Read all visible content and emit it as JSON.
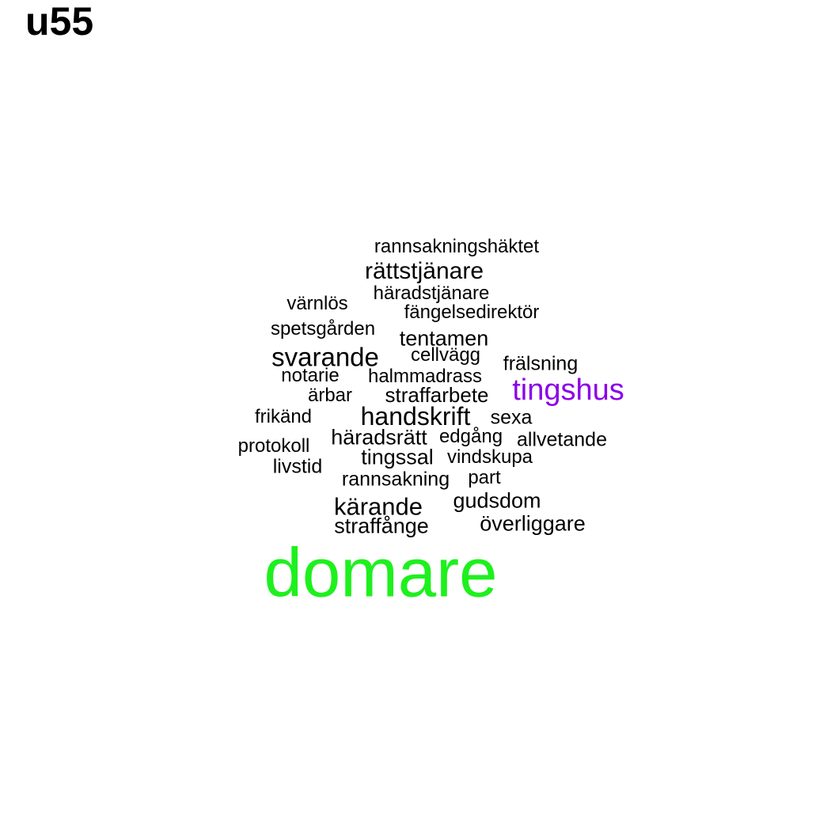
{
  "title": "u55",
  "words": [
    {
      "text": "rannsakningshäktet",
      "color": "#000000"
    },
    {
      "text": "rättstjänare",
      "color": "#000000"
    },
    {
      "text": "häradstjänare",
      "color": "#000000"
    },
    {
      "text": "värnlös",
      "color": "#000000"
    },
    {
      "text": "fängelsedirektör",
      "color": "#000000"
    },
    {
      "text": "spetsgården",
      "color": "#000000"
    },
    {
      "text": "tentamen",
      "color": "#000000"
    },
    {
      "text": "svarande",
      "color": "#000000"
    },
    {
      "text": "cellvägg",
      "color": "#000000"
    },
    {
      "text": "frälsning",
      "color": "#000000"
    },
    {
      "text": "notarie",
      "color": "#000000"
    },
    {
      "text": "halmmadrass",
      "color": "#000000"
    },
    {
      "text": "tingshus",
      "color": "#8B00E6"
    },
    {
      "text": "ärbar",
      "color": "#000000"
    },
    {
      "text": "straffarbete",
      "color": "#000000"
    },
    {
      "text": "frikänd",
      "color": "#000000"
    },
    {
      "text": "handskrift",
      "color": "#000000"
    },
    {
      "text": "sexa",
      "color": "#000000"
    },
    {
      "text": "häradsrätt",
      "color": "#000000"
    },
    {
      "text": "edgång",
      "color": "#000000"
    },
    {
      "text": "allvetande",
      "color": "#000000"
    },
    {
      "text": "protokoll",
      "color": "#000000"
    },
    {
      "text": "tingssal",
      "color": "#000000"
    },
    {
      "text": "vindskupa",
      "color": "#000000"
    },
    {
      "text": "livstid",
      "color": "#000000"
    },
    {
      "text": "rannsakning",
      "color": "#000000"
    },
    {
      "text": "part",
      "color": "#000000"
    },
    {
      "text": "gudsdom",
      "color": "#000000"
    },
    {
      "text": "kärande",
      "color": "#000000"
    },
    {
      "text": "straffånge",
      "color": "#000000"
    },
    {
      "text": "överliggare",
      "color": "#000000"
    },
    {
      "text": "domare",
      "color": "#1EF01E"
    }
  ]
}
